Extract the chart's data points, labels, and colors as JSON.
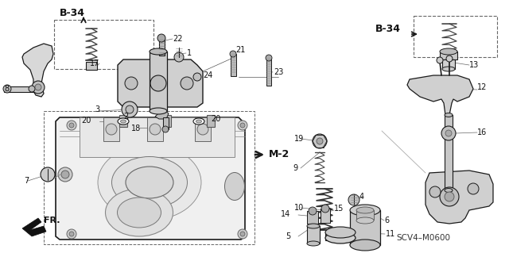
{
  "bg_color": "#ffffff",
  "fig_width": 6.4,
  "fig_height": 3.19,
  "dpi": 100,
  "labels": {
    "b34_left": "B-34",
    "b34_right": "B-34",
    "m2": "M-2",
    "fr": "FR.",
    "part_code": "SCV4–M0600"
  },
  "line_color": "#1a1a1a",
  "text_color": "#111111",
  "gray_light": "#cccccc",
  "gray_mid": "#999999",
  "gray_dark": "#555555",
  "dashed_color": "#666666"
}
